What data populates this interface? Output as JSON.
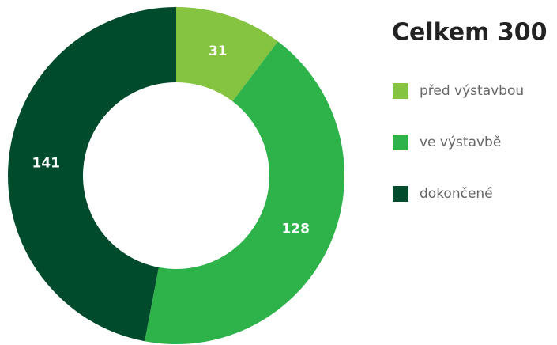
{
  "chart_data": {
    "type": "donut",
    "title": "Celkem 300",
    "categories": [
      "před výstavbou",
      "ve výstavbě",
      "dokončené"
    ],
    "values": [
      31,
      128,
      141
    ],
    "colors": [
      "#85c441",
      "#2db34a",
      "#004b2c"
    ]
  }
}
